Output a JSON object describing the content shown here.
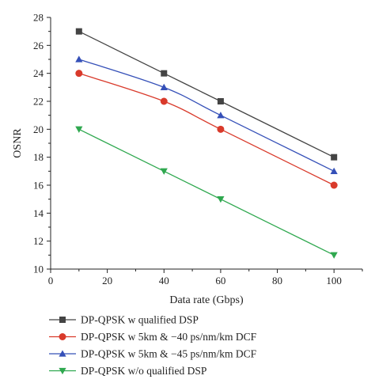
{
  "chart_data": {
    "type": "line",
    "xlabel": "Data rate (Gbps)",
    "ylabel": "OSNR",
    "xlim": [
      0,
      110
    ],
    "ylim": [
      10,
      28
    ],
    "xticks": [
      0,
      20,
      40,
      60,
      80,
      100
    ],
    "yticks": [
      10,
      12,
      14,
      16,
      18,
      20,
      22,
      24,
      26,
      28
    ],
    "grid": false,
    "legend_position": "bottom",
    "series": [
      {
        "name": "DP-QPSK w qualified DSP",
        "marker": "square",
        "color": "#444444",
        "x": [
          10,
          40,
          60,
          100
        ],
        "y": [
          27,
          24,
          22,
          18
        ]
      },
      {
        "name": "DP-QPSK w 5km & −40 ps/nm/km DCF",
        "marker": "circle",
        "color": "#d93a2b",
        "x": [
          10,
          40,
          60,
          100
        ],
        "y": [
          24,
          22,
          20,
          16
        ]
      },
      {
        "name": "DP-QPSK w 5km & −45 ps/nm/km DCF",
        "marker": "triangle-up",
        "color": "#3550b8",
        "x": [
          10,
          40,
          60,
          100
        ],
        "y": [
          25,
          23,
          21,
          17
        ]
      },
      {
        "name": "DP-QPSK w/o qualified DSP",
        "marker": "triangle-down",
        "color": "#2fa84f",
        "x": [
          10,
          40,
          60,
          100
        ],
        "y": [
          20,
          17,
          15,
          11
        ]
      }
    ]
  }
}
